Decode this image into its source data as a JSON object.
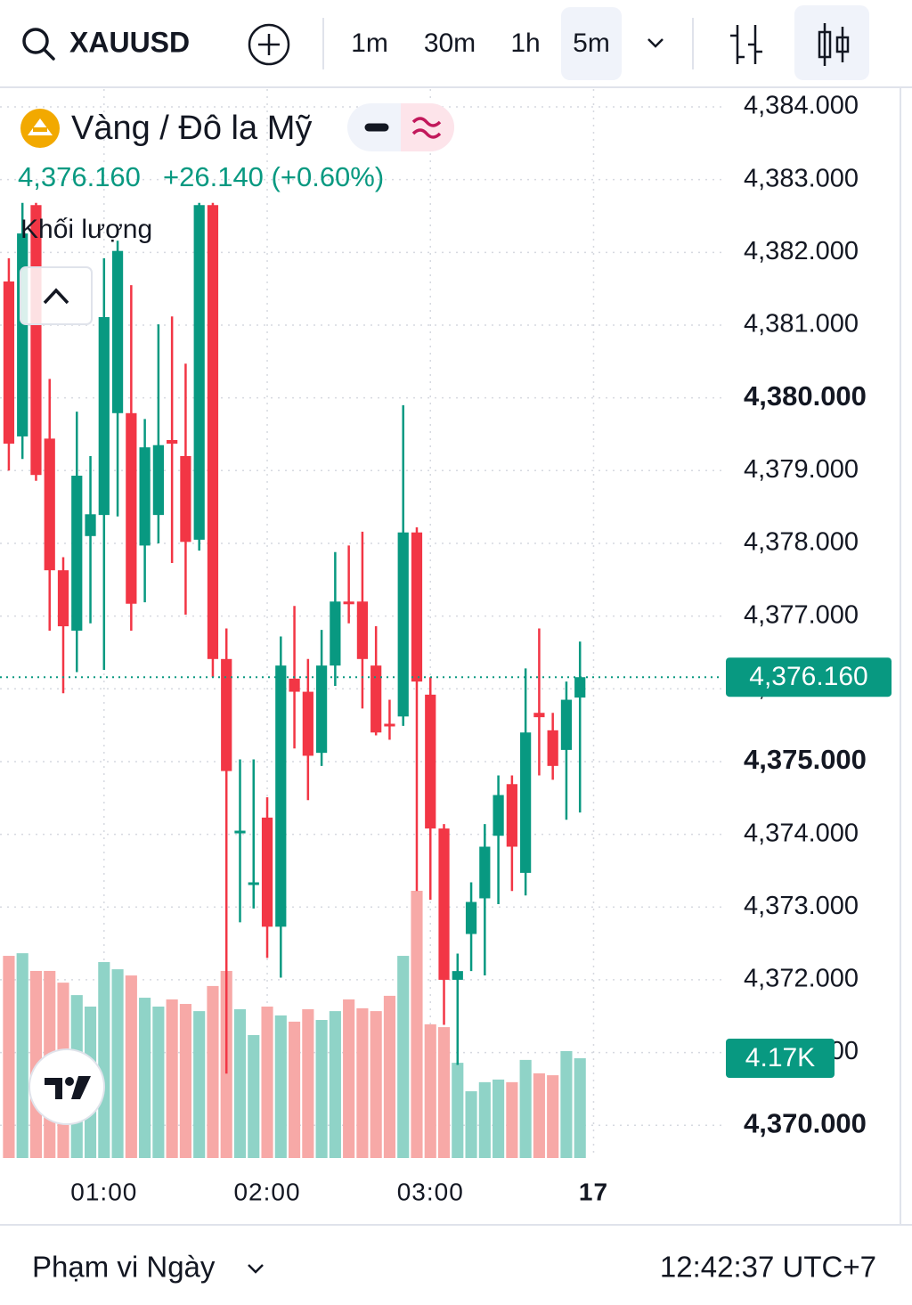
{
  "toolbar": {
    "symbol": "XAUUSD",
    "timeframes": [
      "1m",
      "30m",
      "1h",
      "5m"
    ],
    "active_timeframe": "5m"
  },
  "legend": {
    "title": "Vàng / Đô la Mỹ",
    "change": "+26.140 (+0.60%)"
  },
  "footer": {
    "range": "Phạm vi Ngày",
    "time": "12:42:37 UTC+7"
  },
  "chart_data": {
    "type": "candlestick",
    "x": [
      0,
      1,
      2,
      3,
      4,
      5,
      6,
      7,
      8,
      9,
      10,
      11,
      12,
      13,
      14,
      15,
      16,
      17,
      18,
      19,
      20,
      21,
      22,
      23,
      24,
      25,
      26,
      27,
      28,
      29,
      30,
      31,
      32,
      33,
      34,
      35,
      36,
      37,
      38,
      39,
      40,
      41,
      42
    ],
    "xlim": [
      -0.65,
      52.4
    ],
    "xticks": [
      {
        "value": 7,
        "label": "01:00"
      },
      {
        "value": 19,
        "label": "02:00"
      },
      {
        "value": 31,
        "label": "03:00"
      },
      {
        "value": 43,
        "label": "17"
      }
    ],
    "ylim": [
      4369.55,
      4384.245
    ],
    "yticks": [
      {
        "value": 4370,
        "label": "4,370.000"
      },
      {
        "value": 4371,
        "label": "4,371.000"
      },
      {
        "value": 4372,
        "label": "4,372.000"
      },
      {
        "value": 4373,
        "label": "4,373.000"
      },
      {
        "value": 4374,
        "label": "4,374.000"
      },
      {
        "value": 4375,
        "label": "4,375.000"
      },
      {
        "value": 4376,
        "label": "4,376.000"
      },
      {
        "value": 4377,
        "label": "4,377.000"
      },
      {
        "value": 4378,
        "label": "4,378.000"
      },
      {
        "value": 4379,
        "label": "4,379.000"
      },
      {
        "value": 4380,
        "label": "4,380.000"
      },
      {
        "value": 4381,
        "label": "4,381.000"
      },
      {
        "value": 4382,
        "label": "4,382.000"
      },
      {
        "value": 4383,
        "label": "4,383.000"
      },
      {
        "value": 4384,
        "label": "4,384.000"
      }
    ],
    "grid": true,
    "up_color": "#089981",
    "down_color": "#f23645",
    "open": [
      4381.6,
      4379.47,
      4382.65,
      4379.44,
      4377.63,
      4376.8,
      4378.1,
      4378.39,
      4379.79,
      4379.79,
      4377.97,
      4378.39,
      4379.42,
      4379.2,
      4378.05,
      4382.65,
      4376.41,
      4374.02,
      4373.31,
      4374.23,
      4372.73,
      4376.14,
      4375.96,
      4375.12,
      4376.32,
      4377.2,
      4377.2,
      4376.32,
      4375.52,
      4375.62,
      4378.15,
      4375.92,
      4374.08,
      4372.0,
      4372.63,
      4373.12,
      4373.98,
      4374.69,
      4373.47,
      4375.67,
      4375.43,
      4375.16,
      4375.88
    ],
    "high": [
      4381.92,
      4382.68,
      4382.68,
      4380.26,
      4377.81,
      4379.81,
      4379.2,
      4381.92,
      4382.16,
      4381.55,
      4379.71,
      4381.01,
      4381.12,
      4380.47,
      4382.68,
      4382.68,
      4376.83,
      4375.03,
      4375.03,
      4374.51,
      4376.72,
      4377.14,
      4376.41,
      4376.81,
      4377.88,
      4377.97,
      4378.16,
      4376.86,
      4375.85,
      4379.9,
      4378.22,
      4376.16,
      4374.14,
      4372.36,
      4373.34,
      4374.14,
      4374.81,
      4374.81,
      4376.28,
      4376.83,
      4375.67,
      4376.1,
      4376.65
    ],
    "low": [
      4379.0,
      4379.16,
      4378.86,
      4376.8,
      4375.94,
      4376.23,
      4376.9,
      4376.26,
      4378.37,
      4376.8,
      4377.19,
      4378.0,
      4377.73,
      4377.02,
      4377.9,
      4376.16,
      4370.71,
      4372.79,
      4372.98,
      4372.3,
      4372.03,
      4375.18,
      4374.47,
      4374.94,
      4376.04,
      4376.9,
      4375.73,
      4375.36,
      4375.3,
      4375.49,
      4373.22,
      4373.1,
      4371.38,
      4370.83,
      4372.12,
      4372.06,
      4373.04,
      4373.22,
      4373.16,
      4374.81,
      4374.75,
      4374.2,
      4374.3
    ],
    "close": [
      4379.37,
      4382.26,
      4378.94,
      4377.63,
      4376.86,
      4378.93,
      4378.4,
      4381.11,
      4382.02,
      4377.17,
      4379.32,
      4379.35,
      4379.37,
      4378.02,
      4382.65,
      4376.41,
      4374.87,
      4374.05,
      4373.34,
      4372.73,
      4376.32,
      4375.96,
      4375.08,
      4376.32,
      4377.2,
      4377.17,
      4376.41,
      4375.4,
      4375.49,
      4378.15,
      4376.1,
      4374.08,
      4372.0,
      4372.12,
      4373.07,
      4373.83,
      4374.54,
      4373.83,
      4375.4,
      4375.61,
      4374.94,
      4375.85,
      4376.16
    ],
    "current_price": {
      "value": 4376.16,
      "label": "4,376.160"
    },
    "volume": {
      "name": "Khối lượng",
      "vlim": [
        0,
        44680
      ],
      "up_color": "#8fd3c7",
      "down_color": "#f7a9a7",
      "values": [
        8450,
        8560,
        7820,
        7820,
        7330,
        6810,
        6330,
        8190,
        7890,
        7630,
        6700,
        6330,
        6630,
        6440,
        6140,
        7190,
        7820,
        6220,
        5140,
        6330,
        5960,
        5700,
        6220,
        5770,
        6140,
        6630,
        6260,
        6140,
        6780,
        8450,
        11170,
        5590,
        5470,
        3980,
        2790,
        3170,
        3280,
        3170,
        4100,
        3540,
        3460,
        4470,
        4170
      ],
      "value_labels": [
        null,
        null,
        null,
        null,
        null,
        null,
        null,
        null,
        null,
        null,
        null,
        null,
        null,
        null,
        null,
        null,
        null,
        null,
        null,
        null,
        null,
        null,
        null,
        null,
        null,
        null,
        null,
        null,
        null,
        null,
        null,
        null,
        null,
        null,
        null,
        null,
        null,
        null,
        null,
        null,
        null,
        null,
        "4.17K"
      ]
    }
  }
}
